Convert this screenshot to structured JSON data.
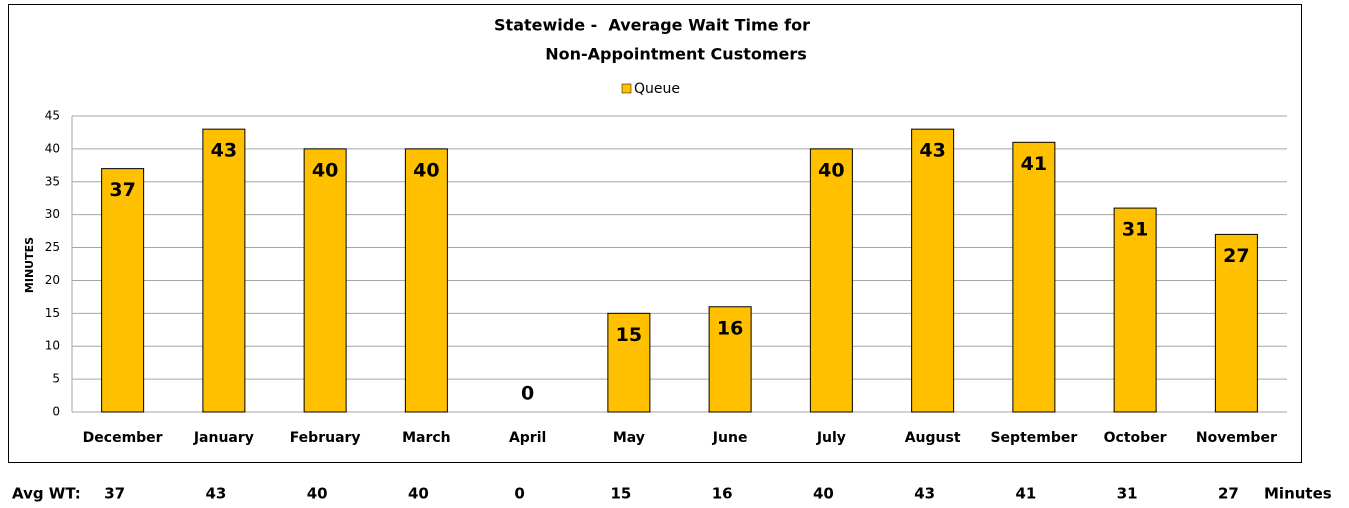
{
  "chart_data": {
    "type": "bar",
    "title": [
      "Statewide -  Average Wait Time for",
      "Non-Appointment Customers"
    ],
    "ylabel": "MINUTES",
    "categories": [
      "December",
      "January",
      "February",
      "March",
      "April",
      "May",
      "June",
      "July",
      "August",
      "September",
      "October",
      "November"
    ],
    "series": [
      {
        "name": "Queue",
        "color": "#FFC000",
        "values": [
          37,
          43,
          40,
          40,
          0,
          15,
          16,
          40,
          43,
          41,
          31,
          27
        ]
      }
    ],
    "ylim": [
      0,
      45
    ],
    "yticks": [
      0,
      5,
      10,
      15,
      20,
      25,
      30,
      35,
      40,
      45
    ],
    "grid": true,
    "legend": "top"
  },
  "summary_row": {
    "label": "Avg WT:",
    "unit": "Minutes"
  }
}
